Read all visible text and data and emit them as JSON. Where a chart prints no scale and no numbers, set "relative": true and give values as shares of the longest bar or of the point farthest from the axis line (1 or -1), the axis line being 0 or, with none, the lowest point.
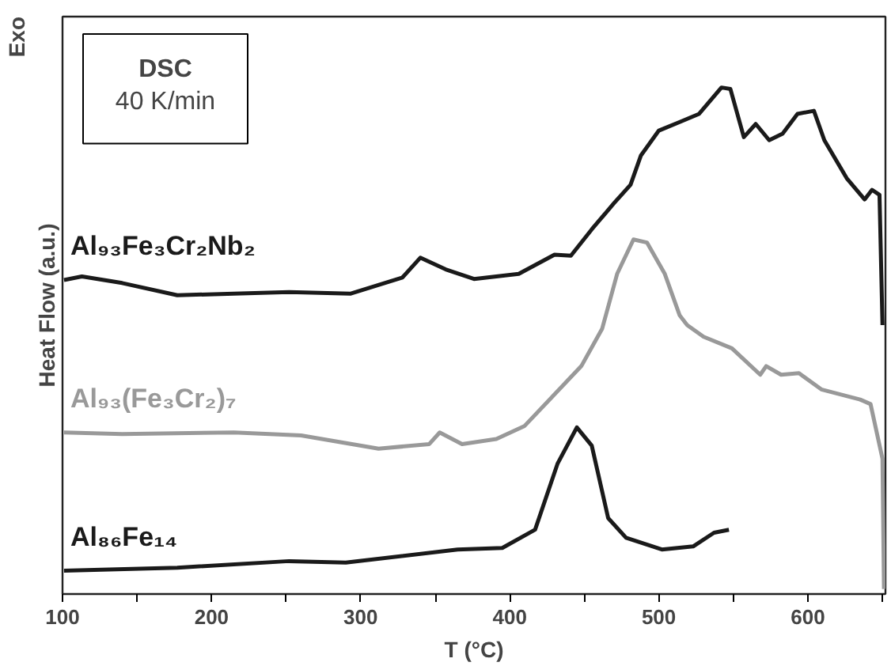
{
  "chart_data": {
    "type": "line",
    "xlabel": "T (°C)",
    "ylabel": "Heat Flow (a.u.)",
    "relative": true,
    "xlim": [
      100,
      652
    ],
    "xticks": [
      100,
      {
        "value": 150,
        "label": null
      },
      200,
      {
        "value": 250,
        "label": null
      },
      300,
      {
        "value": 350,
        "label": null
      },
      400,
      {
        "value": 450,
        "label": null
      },
      500,
      {
        "value": 550,
        "label": null
      },
      600,
      {
        "value": 650,
        "label": null
      }
    ],
    "tick_labels": "x",
    "grid": false,
    "legend": false,
    "line_style": "solid",
    "marker": "none",
    "annotations": [
      "Exo",
      "DSC",
      "40 K/min"
    ],
    "series": [
      {
        "name": "Al₉₃Fe₃Cr₂Nb₂",
        "color": "#1a1a1a",
        "x": [
          101,
          113,
          140,
          177,
          215,
          252,
          293,
          328,
          340,
          357,
          376,
          406,
          430,
          441,
          455,
          470,
          481,
          488,
          500,
          514,
          527,
          542,
          548,
          557,
          565,
          574,
          583,
          593,
          604,
          611,
          626,
          638,
          643,
          648,
          650
        ],
        "values": [
          0.62,
          0.627,
          0.614,
          0.59,
          0.593,
          0.596,
          0.593,
          0.625,
          0.664,
          0.641,
          0.622,
          0.632,
          0.67,
          0.668,
          0.72,
          0.772,
          0.808,
          0.866,
          0.915,
          0.932,
          0.948,
          1.0,
          0.997,
          0.902,
          0.928,
          0.896,
          0.909,
          0.948,
          0.954,
          0.896,
          0.821,
          0.779,
          0.798,
          0.788,
          0.531
        ]
      },
      {
        "name": "Al₉₃(Fe₃Cr₂)₇",
        "color": "#999999",
        "x": [
          101,
          140,
          215,
          260,
          312,
          346,
          353,
          368,
          391,
          410,
          448,
          462,
          472,
          483,
          492,
          504,
          514,
          519,
          530,
          549,
          568,
          572,
          582,
          594,
          609,
          635,
          642,
          650,
          651
        ],
        "values": [
          0.319,
          0.316,
          0.319,
          0.313,
          0.287,
          0.296,
          0.319,
          0.296,
          0.306,
          0.332,
          0.45,
          0.524,
          0.632,
          0.7,
          0.694,
          0.632,
          0.55,
          0.531,
          0.508,
          0.485,
          0.433,
          0.45,
          0.433,
          0.436,
          0.404,
          0.384,
          0.375,
          0.267,
          0.01
        ]
      },
      {
        "name": "Al₈₆Fe₁₄",
        "color": "#1a1a1a",
        "x": [
          101,
          177,
          252,
          290,
          365,
          395,
          417,
          432,
          445,
          455,
          466,
          478,
          502,
          523,
          537,
          547
        ],
        "values": [
          0.046,
          0.052,
          0.065,
          0.062,
          0.088,
          0.091,
          0.127,
          0.257,
          0.329,
          0.293,
          0.15,
          0.111,
          0.088,
          0.094,
          0.121,
          0.127
        ]
      }
    ]
  }
}
